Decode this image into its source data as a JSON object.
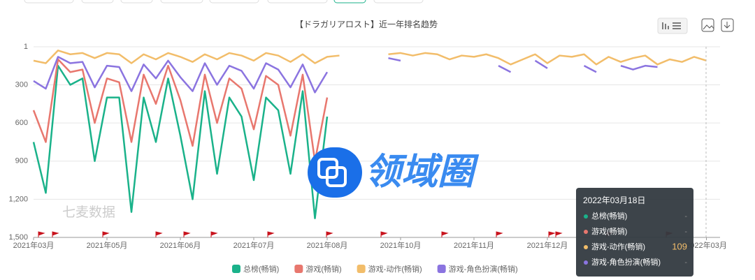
{
  "chart_data": {
    "type": "line",
    "title": "【ドラガリアロスト】近一年排名趋势",
    "watermarks": [
      "七麦数据",
      "领域圈"
    ],
    "inverted": true,
    "grid": true,
    "ylim": [
      1,
      1500
    ],
    "yticks": [
      1,
      300,
      600,
      900,
      {
        "value": 1200,
        "label": "1,200"
      },
      {
        "value": 1500,
        "label": "1,500"
      }
    ],
    "categories": [
      "2021年03月",
      null,
      null,
      null,
      null,
      null,
      "2021年05月",
      null,
      null,
      null,
      null,
      null,
      "2021年06月",
      null,
      null,
      null,
      null,
      null,
      "2021年07月",
      null,
      null,
      null,
      null,
      null,
      "2021年08月",
      null,
      null,
      null,
      null,
      null,
      "2021年10月",
      null,
      null,
      null,
      null,
      null,
      "2021年11月",
      null,
      null,
      null,
      null,
      null,
      "2021年12月",
      null,
      null,
      null,
      null,
      null,
      null,
      null,
      null,
      null,
      null,
      null,
      null,
      "2022年03月"
    ],
    "series": [
      {
        "name": "总榜(畅销)",
        "color": "#1ab28a",
        "values": [
          750,
          1150,
          150,
          300,
          250,
          900,
          400,
          400,
          1300,
          400,
          750,
          250,
          700,
          1200,
          350,
          1000,
          400,
          550,
          1050,
          400,
          500,
          1000,
          350,
          1350,
          550,
          null,
          null,
          null,
          null,
          null,
          null,
          null,
          null,
          null,
          null,
          null,
          null,
          null,
          null,
          null,
          null,
          null,
          null,
          null,
          null,
          null,
          null,
          null,
          null,
          null,
          null,
          null,
          null,
          null,
          null,
          null
        ]
      },
      {
        "name": "游戏(畅销)",
        "color": "#e8776e",
        "values": [
          500,
          750,
          100,
          200,
          180,
          600,
          250,
          280,
          750,
          220,
          450,
          150,
          420,
          780,
          220,
          600,
          250,
          330,
          650,
          230,
          300,
          700,
          220,
          900,
          400,
          null,
          null,
          null,
          null,
          null,
          null,
          null,
          null,
          null,
          null,
          null,
          null,
          null,
          null,
          null,
          null,
          null,
          null,
          null,
          null,
          null,
          null,
          null,
          null,
          null,
          null,
          null,
          null,
          null,
          null,
          null
        ]
      },
      {
        "name": "游戏-动作(畅销)",
        "color": "#f2bd6a",
        "values": [
          110,
          130,
          30,
          60,
          50,
          90,
          50,
          60,
          130,
          60,
          100,
          50,
          80,
          120,
          60,
          100,
          50,
          70,
          110,
          50,
          70,
          120,
          60,
          130,
          80,
          70,
          null,
          null,
          null,
          60,
          50,
          70,
          50,
          60,
          100,
          70,
          80,
          60,
          90,
          140,
          100,
          60,
          130,
          70,
          80,
          60,
          140,
          80,
          120,
          90,
          70,
          140,
          100,
          120,
          80,
          110
        ]
      },
      {
        "name": "游戏-角色扮演(畅销)",
        "color": "#8b74e0",
        "values": [
          270,
          330,
          80,
          130,
          120,
          320,
          150,
          160,
          350,
          140,
          250,
          110,
          240,
          350,
          130,
          300,
          150,
          190,
          330,
          130,
          180,
          320,
          140,
          360,
          200,
          null,
          null,
          null,
          null,
          90,
          110,
          null,
          null,
          null,
          null,
          null,
          null,
          null,
          150,
          200,
          null,
          110,
          170,
          null,
          null,
          150,
          200,
          null,
          150,
          180,
          150,
          160,
          null,
          null,
          null,
          null
        ]
      }
    ],
    "tooltip": {
      "title": "2022年03月18日",
      "labels": [
        "-",
        "-",
        "109",
        "-"
      ]
    }
  }
}
